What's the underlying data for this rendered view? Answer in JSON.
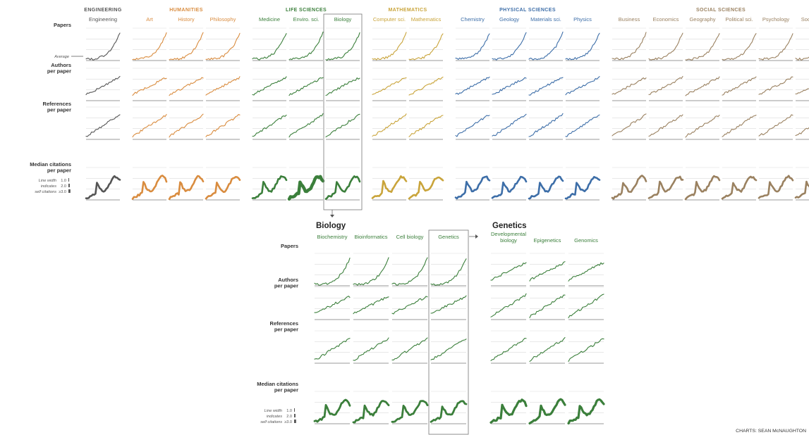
{
  "chart_data": [
    {
      "type": "line",
      "id": "overview",
      "groups": [
        {
          "label": "ENGINEERING",
          "color": "#555555",
          "fields": [
            "Engineering"
          ]
        },
        {
          "label": "HUMANITIES",
          "color": "#d98c3f",
          "fields": [
            "Art",
            "History",
            "Philosophy"
          ]
        },
        {
          "label": "LIFE SCIENCES",
          "color": "#3b7f3b",
          "fields": [
            "Medicine",
            "Enviro. sci.",
            "Biology"
          ]
        },
        {
          "label": "MATHEMATICS",
          "color": "#c9a43a",
          "fields": [
            "Computer sci.",
            "Mathematics"
          ]
        },
        {
          "label": "PHYSICAL SCIENCES",
          "color": "#3d6ea8",
          "fields": [
            "Chemistry",
            "Geology",
            "Materials sci.",
            "Physics"
          ]
        },
        {
          "label": "SOCIAL SCIENCES",
          "color": "#9a8160",
          "fields": [
            "Business",
            "Economics",
            "Geography",
            "Political sci.",
            "Psychology",
            "Sociology"
          ]
        }
      ],
      "rows": [
        "Papers",
        "Authors per paper",
        "References per paper",
        "Median citations per paper"
      ],
      "highlighted_field": "Biology"
    },
    {
      "type": "line",
      "id": "biology",
      "title": "Biology",
      "color": "#3b7f3b",
      "fields": [
        "Biochemistry",
        "Bioinformatics",
        "Cell biology",
        "Genetics"
      ],
      "rows": [
        "Papers",
        "Authors per paper",
        "References per paper",
        "Median citations per paper"
      ],
      "highlighted_field": "Genetics"
    },
    {
      "type": "line",
      "id": "genetics",
      "title": "Genetics",
      "color": "#3b7f3b",
      "fields": [
        "Developmental biology",
        "Epigenetics",
        "Genomics"
      ],
      "rows": [
        "Papers",
        "Authors per paper",
        "References per paper",
        "Median citations per paper"
      ]
    }
  ],
  "overview_rows": [
    {
      "label_lines": [
        "Papers"
      ]
    },
    {
      "label_lines": [
        "Authors",
        "per paper"
      ]
    },
    {
      "label_lines": [
        "References",
        "per paper"
      ]
    },
    {
      "label_lines": [
        "Median citations",
        "per paper"
      ]
    }
  ],
  "sub_rows": [
    {
      "label_lines": [
        "Papers"
      ]
    },
    {
      "label_lines": [
        "Authors",
        "per paper"
      ]
    },
    {
      "label_lines": [
        "References",
        "per paper"
      ]
    },
    {
      "label_lines": [
        "Median citations",
        "per paper"
      ]
    }
  ],
  "genetics_field_lines": [
    [
      "Developmental",
      "biology"
    ],
    [
      "Epigenetics"
    ],
    [
      "Genomics"
    ]
  ],
  "average_label": "Average",
  "legend": {
    "lines": [
      "Line width",
      "indicates",
      "self citations"
    ],
    "values": [
      "1.0",
      "2.0",
      "≥3.0"
    ]
  },
  "credit": "CHARTS: SEAN McNAUGHTON"
}
